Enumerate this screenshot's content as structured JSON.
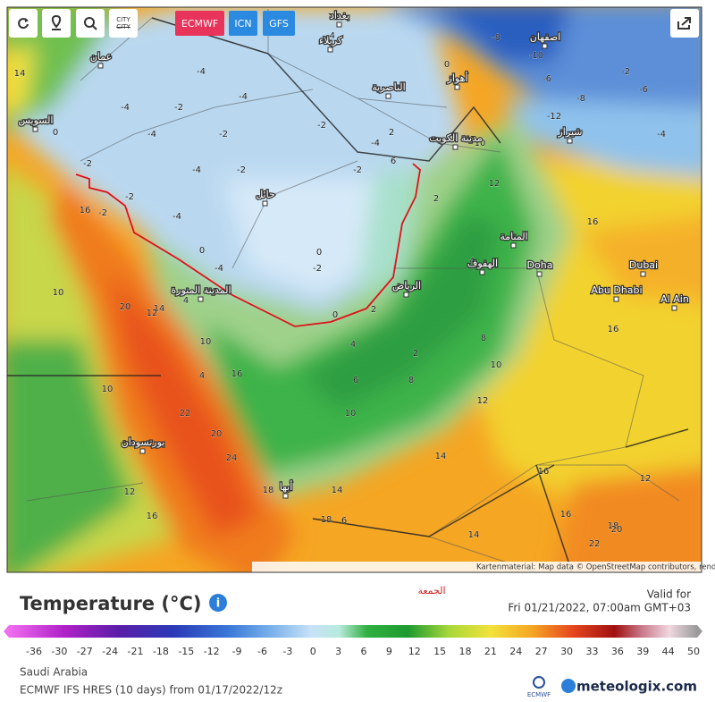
{
  "toolbar": {
    "city": "CITY",
    "models": [
      "ECMWF",
      "ICN",
      "GFS"
    ]
  },
  "map": {
    "cities": [
      "عمان",
      "السويس",
      "بغداد",
      "كربلاء",
      "الناصرية",
      "أهواز",
      "اصفهان",
      "شيراز",
      "مدينة الكويت",
      "حائل",
      "المدينة المنورة",
      "الرياض",
      "الهفوف",
      "المنامة",
      "Doha",
      "Dubai",
      "Abu Dhabi",
      "Al Ain",
      "بورتسودان",
      "أبها"
    ],
    "contours": [
      "14",
      "0",
      "-2",
      "-4",
      "-4",
      "-4",
      "-2",
      "-4",
      "-2",
      "-2",
      "-4",
      "-4",
      "-2",
      "-4",
      "-2",
      "-4",
      "-6",
      "-8",
      "-10",
      "-12",
      "-8",
      "-6",
      "-4",
      "-2",
      "0",
      "2",
      "6",
      "10",
      "12",
      "16",
      "-2",
      "-4",
      "-2",
      "0",
      "0",
      "2",
      "0",
      "-2",
      "2",
      "4",
      "2",
      "4",
      "6",
      "8",
      "10",
      "12",
      "10",
      "8",
      "16",
      "20",
      "14",
      "12",
      "10",
      "10",
      "22",
      "20",
      "24",
      "12",
      "16",
      "14",
      "14",
      "14",
      "16",
      "12",
      "16",
      "18",
      "16",
      "22",
      "20",
      "18",
      "18",
      "16",
      "4",
      "4",
      "6",
      "10"
    ],
    "attribution": "Kartenmaterial: Map data © OpenStreetMap contributors, rendering GIScience Research Group @ Heidelberg University"
  },
  "legend": {
    "title": "Temperature (°C)",
    "day": "الجمعة",
    "valid_label": "Valid for",
    "valid_time": "Fri 01/21/2022, 07:00am GMT+03",
    "ticks": [
      -36,
      -30,
      -27,
      -24,
      -21,
      -18,
      -15,
      -12,
      -9,
      -6,
      -3,
      0,
      3,
      6,
      9,
      12,
      15,
      18,
      21,
      24,
      27,
      30,
      33,
      36,
      39,
      44,
      50
    ]
  },
  "footer": {
    "region": "Saudi Arabia",
    "model_run": "ECMWF IFS HRES (10 days) from 01/17/2022/12z",
    "logo_small": "ECMWF",
    "brand": "meteologix.com"
  }
}
